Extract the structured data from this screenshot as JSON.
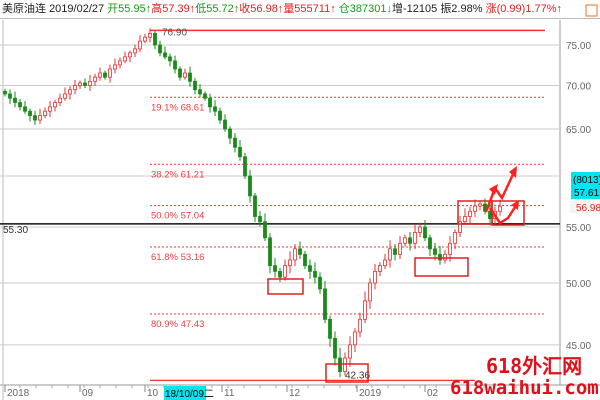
{
  "header": {
    "symbol": "美原油连",
    "date": "2019/02/27",
    "open": "开55.95↑",
    "high": "高57.39↑",
    "low": "低55.72↑",
    "close": "收56.98↑",
    "volume": "量555711↑",
    "oi": "仓387301↓",
    "oi_change": "增-12105",
    "amplitude": "振2.98%",
    "change": "涨(0.99)1.77%↑"
  },
  "price_box": {
    "count": "(8013)",
    "price": "57.61",
    "color": "#00e5ee"
  },
  "last_price": "56.98",
  "left_price": "55.30",
  "cursor_date": "18/10/09二",
  "watermark": {
    "line1": "618外汇网",
    "line2": "618waihui.com"
  },
  "colors": {
    "up": "#e83030",
    "down": "#1a8a1a",
    "fib": "#ff3030"
  },
  "chart_data": {
    "type": "candlestick",
    "scale": "log",
    "ylim": [
      42,
      78
    ],
    "yticks": [
      "75.00",
      "70.00",
      "65.00",
      "55.00",
      "50.00",
      "45.00"
    ],
    "xticks": [
      "2018",
      "09",
      "10",
      "11",
      "12",
      "2019",
      "02"
    ],
    "closes": [
      69,
      68.5,
      68,
      67.5,
      67,
      66.5,
      66,
      66.5,
      67,
      67.5,
      68,
      68.5,
      69,
      69.5,
      70,
      70.3,
      70,
      70.5,
      71,
      71.5,
      71,
      72,
      72.5,
      73,
      73.5,
      74,
      74.5,
      75.5,
      76,
      76.5,
      75,
      74,
      73.5,
      73,
      72,
      71,
      71.5,
      70.5,
      69.5,
      69,
      68.5,
      67.5,
      67,
      66,
      65,
      64,
      63,
      62,
      60,
      58,
      56,
      55.5,
      54,
      51.5,
      51,
      50.5,
      51.5,
      52,
      53,
      52.5,
      51.5,
      51,
      50.5,
      49.5,
      47,
      45.5,
      44,
      43,
      44,
      45,
      46,
      47,
      48.5,
      50,
      51,
      51.5,
      52,
      53,
      52.5,
      53.5,
      54,
      53.5,
      54.5,
      55,
      54,
      53,
      52.5,
      52,
      52.5,
      53.5,
      54.5,
      55.5,
      56,
      56.5,
      57,
      57.2,
      56.5,
      55.8,
      56.5,
      56.98
    ],
    "high_label": "76.90",
    "low_label": "42.36",
    "fib_levels": [
      {
        "label": "19.1% 68.61",
        "value": 68.61
      },
      {
        "label": "38.2% 61.21",
        "value": 61.21
      },
      {
        "label": "50.0% 57.04",
        "value": 57.04
      },
      {
        "label": "61.8% 53.16",
        "value": 53.16
      },
      {
        "label": "80.9% 47.43",
        "value": 47.43
      }
    ],
    "support_line": 55.3
  }
}
